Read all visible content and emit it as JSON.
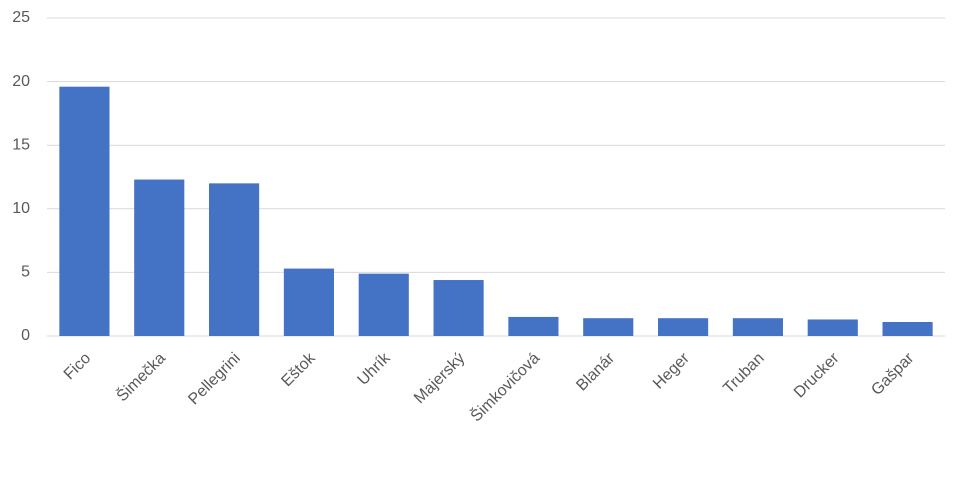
{
  "chart_data": {
    "type": "bar",
    "categories": [
      "Fico",
      "Šimečka",
      "Pellegrini",
      "Eštok",
      "Uhrík",
      "Majerský",
      "Šimkovičová",
      "Blanár",
      "Heger",
      "Truban",
      "Drucker",
      "Gašpar"
    ],
    "values": [
      19.6,
      12.3,
      12.0,
      5.3,
      4.9,
      4.4,
      1.5,
      1.4,
      1.4,
      1.4,
      1.3,
      1.1
    ],
    "color": "#4472c4",
    "ylim": [
      0,
      25
    ],
    "yticks": [
      0,
      5,
      10,
      15,
      20,
      25
    ],
    "grid": true
  }
}
